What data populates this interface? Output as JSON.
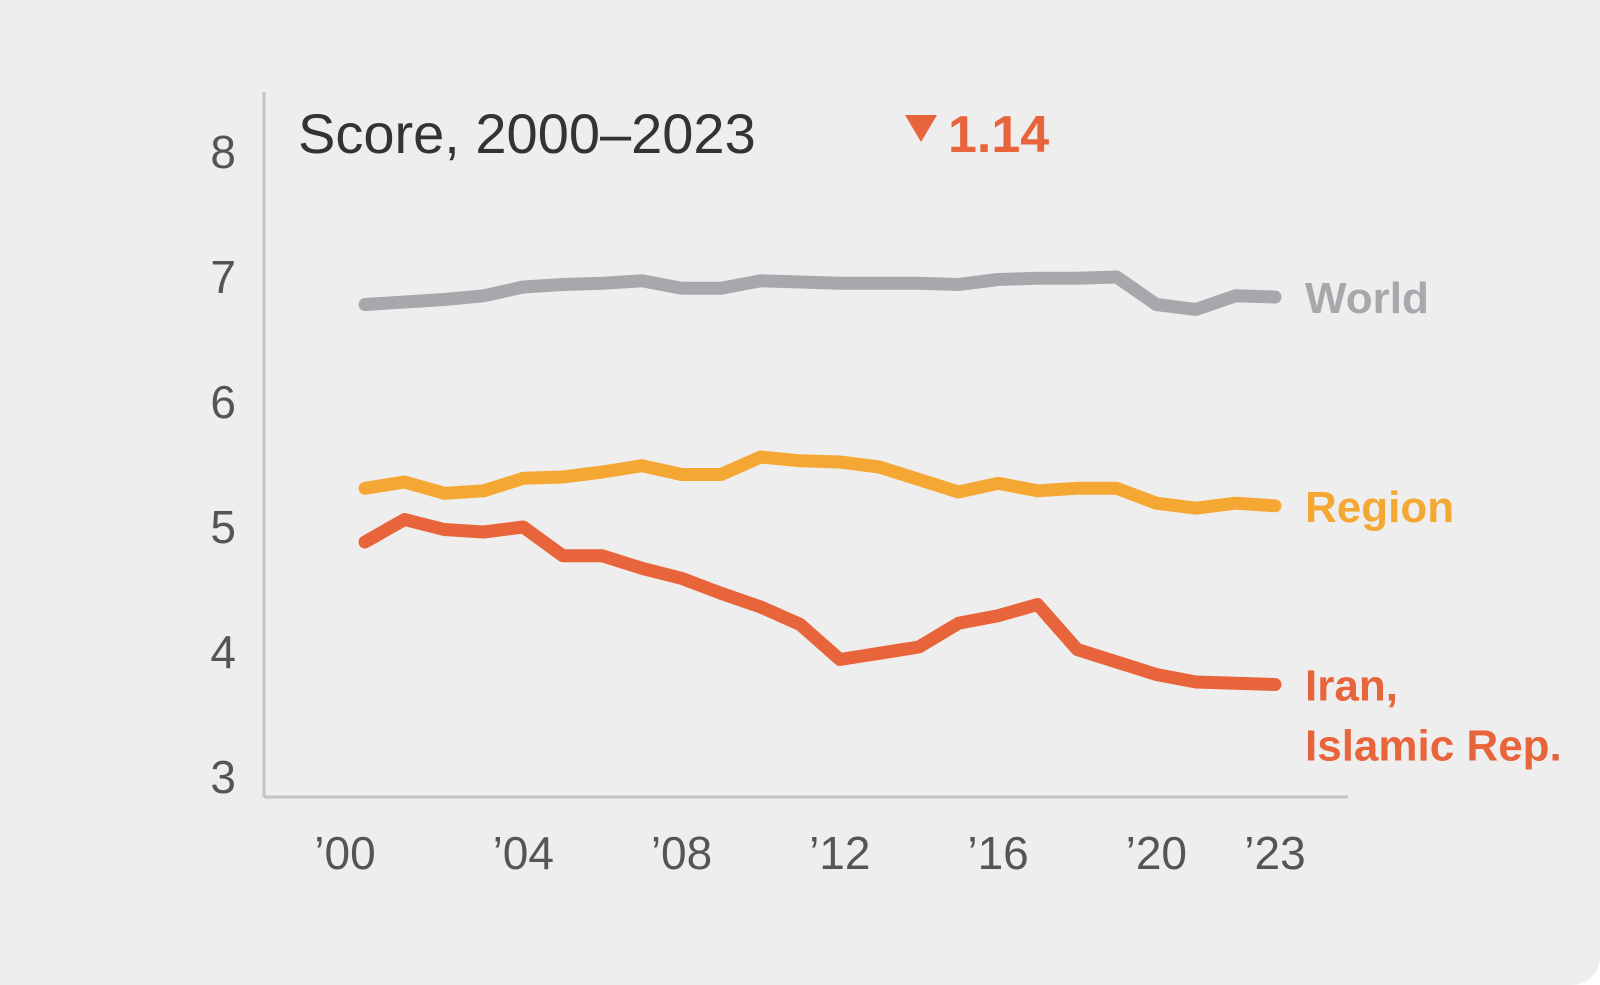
{
  "chart_data": {
    "type": "line",
    "title": "Score, 2000–2023",
    "annotation": {
      "direction": "down",
      "symbol": "▼",
      "value": "1.14",
      "color": "#e8643a"
    },
    "xlabel": "",
    "ylabel": "",
    "x": [
      2000,
      2001,
      2002,
      2003,
      2004,
      2005,
      2006,
      2007,
      2008,
      2009,
      2010,
      2011,
      2012,
      2013,
      2014,
      2015,
      2016,
      2017,
      2018,
      2019,
      2020,
      2021,
      2022,
      2023
    ],
    "x_ticks": [
      2000,
      2004,
      2008,
      2012,
      2016,
      2020,
      2023
    ],
    "x_tick_labels": [
      "’00",
      "’04",
      "’08",
      "’12",
      "’16",
      "’20",
      "’23"
    ],
    "y_ticks": [
      3,
      4,
      5,
      6,
      7,
      8
    ],
    "y_tick_labels": [
      "3",
      "4",
      "5",
      "6",
      "7",
      "8"
    ],
    "ylim": [
      3,
      8
    ],
    "xlim": [
      2000,
      2023
    ],
    "grid": false,
    "legend": "inline-right",
    "series": [
      {
        "name": "World",
        "label_lines": [
          "World"
        ],
        "color": "#a7a8ab",
        "values": [
          6.78,
          6.8,
          6.82,
          6.85,
          6.92,
          6.94,
          6.95,
          6.97,
          6.91,
          6.91,
          6.97,
          6.96,
          6.95,
          6.95,
          6.95,
          6.94,
          6.98,
          6.99,
          6.99,
          7.0,
          6.78,
          6.74,
          6.85,
          6.84
        ]
      },
      {
        "name": "Region",
        "label_lines": [
          "Region"
        ],
        "color": "#f5a733",
        "values": [
          5.31,
          5.36,
          5.27,
          5.29,
          5.39,
          5.4,
          5.44,
          5.49,
          5.42,
          5.42,
          5.56,
          5.53,
          5.52,
          5.48,
          5.38,
          5.28,
          5.35,
          5.29,
          5.31,
          5.31,
          5.19,
          5.15,
          5.19,
          5.17
        ]
      },
      {
        "name": "Iran, Islamic Rep.",
        "label_lines": [
          "Iran,",
          "Islamic Rep."
        ],
        "color": "#e8643a",
        "values": [
          4.88,
          5.06,
          4.98,
          4.96,
          5.0,
          4.77,
          4.77,
          4.67,
          4.59,
          4.47,
          4.36,
          4.22,
          3.94,
          3.99,
          4.04,
          4.23,
          4.29,
          4.38,
          4.02,
          3.92,
          3.82,
          3.76,
          3.75,
          3.74
        ]
      }
    ]
  }
}
